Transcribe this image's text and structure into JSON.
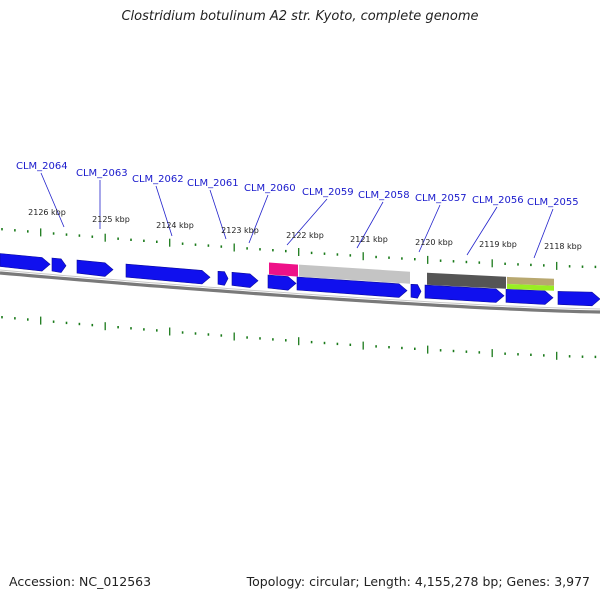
{
  "title": "Clostridium botulinum A2 str. Kyoto, complete genome",
  "footer": {
    "accession": "Accession: NC_012563",
    "summary": "Topology: circular; Length: 4,155,278 bp; Genes: 3,977"
  },
  "gene_labels": [
    "CLM_2064",
    "CLM_2063",
    "CLM_2062",
    "CLM_2061",
    "CLM_2060",
    "CLM_2059",
    "CLM_2058",
    "CLM_2057",
    "CLM_2056",
    "CLM_2055"
  ],
  "tick_labels": [
    "2126 kbp",
    "2125 kbp",
    "2124 kbp",
    "2123 kbp",
    "2122 kbp",
    "2121 kbp",
    "2120 kbp",
    "2119 kbp",
    "2118 kbp"
  ],
  "colors": {
    "gene": "#1010ee",
    "backbone": "#7a7a7a",
    "tick": "#1a7a1a",
    "label": "#1a1acc",
    "feature_pink": "#ee1188",
    "feature_light_gray": "#c4c4c4",
    "feature_dark_gray": "#555555",
    "feature_tan": "#b8a870",
    "feature_green": "#99ee22"
  }
}
